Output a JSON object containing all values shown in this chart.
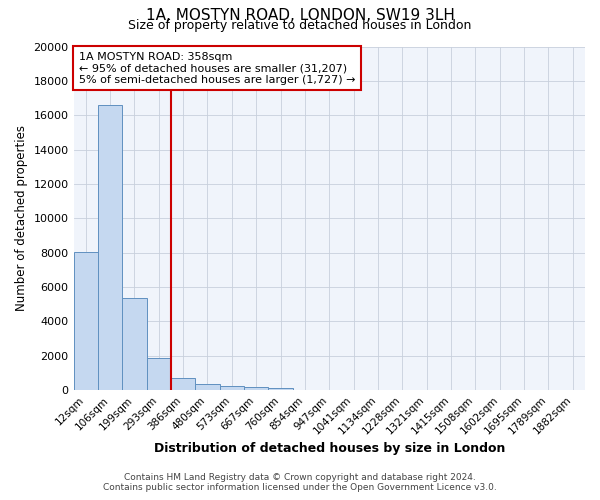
{
  "title": "1A, MOSTYN ROAD, LONDON, SW19 3LH",
  "subtitle": "Size of property relative to detached houses in London",
  "xlabel": "Distribution of detached houses by size in London",
  "ylabel": "Number of detached properties",
  "footer_line1": "Contains HM Land Registry data © Crown copyright and database right 2024.",
  "footer_line2": "Contains public sector information licensed under the Open Government Licence v3.0.",
  "bar_labels": [
    "12sqm",
    "106sqm",
    "199sqm",
    "293sqm",
    "386sqm",
    "480sqm",
    "573sqm",
    "667sqm",
    "760sqm",
    "854sqm",
    "947sqm",
    "1041sqm",
    "1134sqm",
    "1228sqm",
    "1321sqm",
    "1415sqm",
    "1508sqm",
    "1602sqm",
    "1695sqm",
    "1789sqm",
    "1882sqm"
  ],
  "bar_heights": [
    8050,
    16600,
    5350,
    1850,
    700,
    380,
    220,
    170,
    130,
    0,
    0,
    0,
    0,
    0,
    0,
    0,
    0,
    0,
    0,
    0,
    0
  ],
  "bar_color": "#c5d8f0",
  "bar_edge_color": "#6090c0",
  "background_color": "#ffffff",
  "plot_bg_color": "#f0f4fb",
  "grid_color": "#c8d0dc",
  "vline_x": 3.5,
  "vline_color": "#cc0000",
  "annotation_text": "1A MOSTYN ROAD: 358sqm\n← 95% of detached houses are smaller (31,207)\n5% of semi-detached houses are larger (1,727) →",
  "annotation_box_color": "white",
  "annotation_box_edge_color": "#cc0000",
  "ylim": [
    0,
    20000
  ],
  "yticks": [
    0,
    2000,
    4000,
    6000,
    8000,
    10000,
    12000,
    14000,
    16000,
    18000,
    20000
  ]
}
